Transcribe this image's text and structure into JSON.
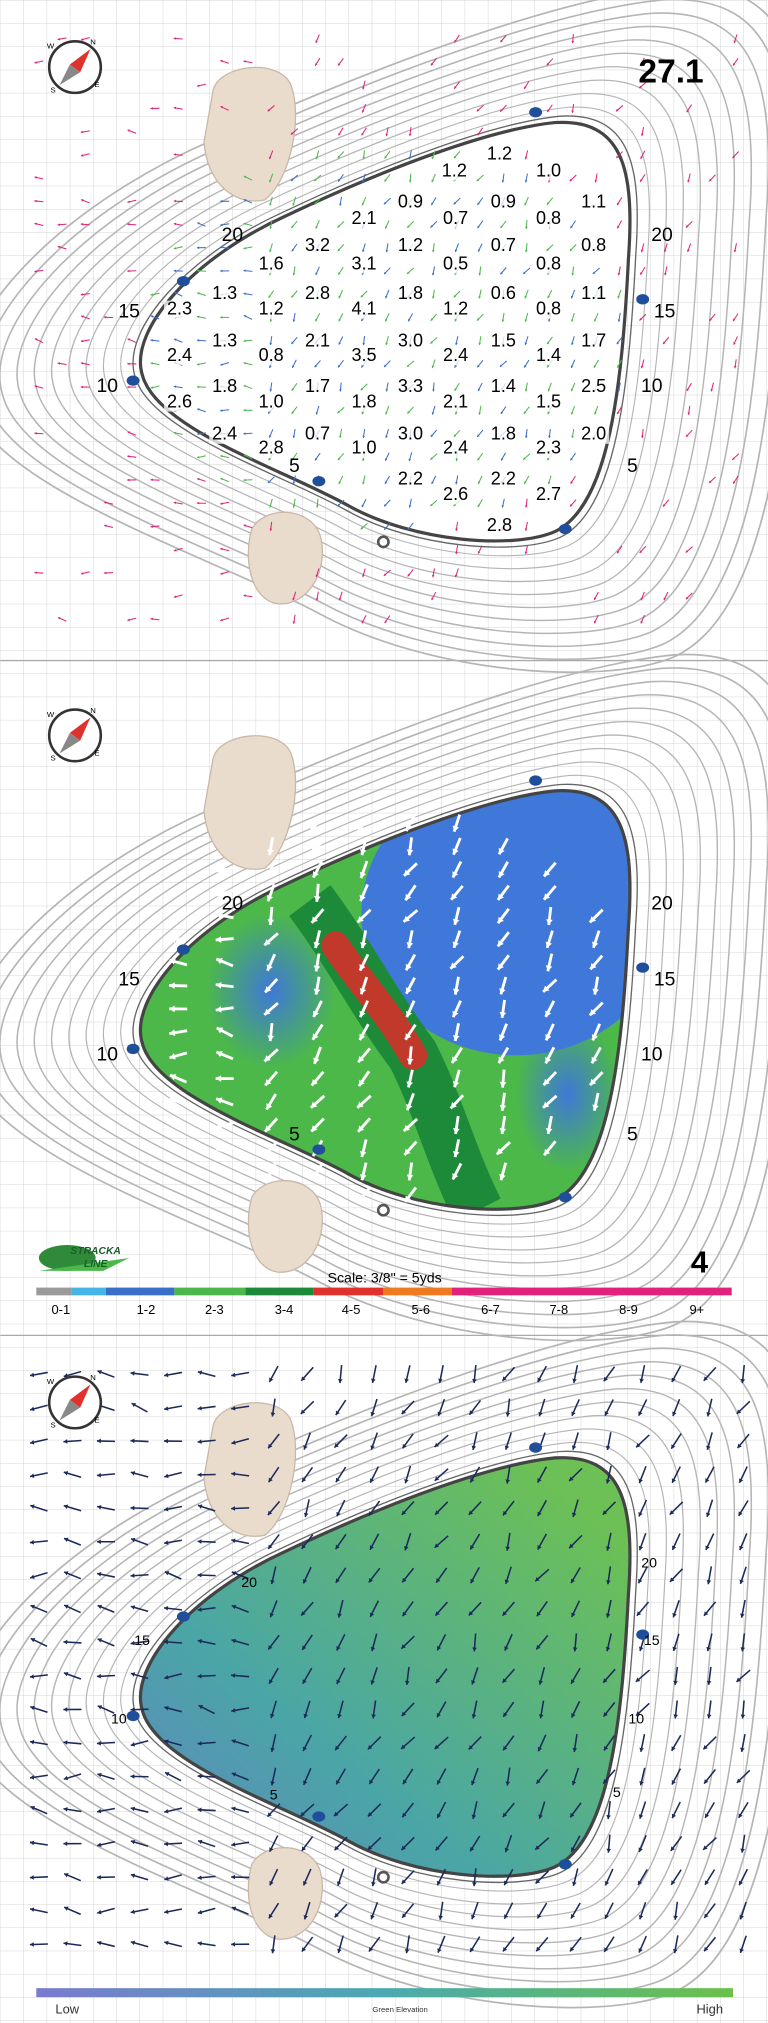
{
  "slope_panel": {
    "title": "27.1",
    "rows": [
      [
        "1.2"
      ],
      [
        "1.2",
        "1.0"
      ],
      [
        "0.9",
        "0.9",
        "1.1"
      ],
      [
        "2.1",
        "0.7",
        "0.8"
      ],
      [
        "3.2",
        "1.2",
        "0.7",
        "0.8"
      ],
      [
        "1.6",
        "3.1",
        "0.5",
        "0.8"
      ],
      [
        "1.3",
        "2.8",
        "1.8",
        "0.6",
        "1.1"
      ],
      [
        "2.3",
        "1.2",
        "4.1",
        "1.2",
        "0.8"
      ],
      [
        "1.3",
        "2.1",
        "3.0",
        "1.5",
        "1.7"
      ],
      [
        "2.4",
        "0.8",
        "3.5",
        "2.4",
        "1.4"
      ],
      [
        "1.8",
        "1.7",
        "3.3",
        "1.4",
        "2.5"
      ],
      [
        "2.6",
        "1.0",
        "1.8",
        "2.1",
        "1.5"
      ],
      [
        "2.4",
        "0.7",
        "3.0",
        "1.8",
        "2.0"
      ],
      [
        "2.8",
        "1.0",
        "2.4",
        "2.3"
      ],
      [
        "2.2",
        "2.2"
      ],
      [
        "2.6",
        "2.7"
      ],
      [
        "2.8"
      ]
    ]
  },
  "panels": [
    {
      "contour_labels": [
        "20",
        "15",
        "10",
        "5",
        "20",
        "15",
        "10",
        "5"
      ]
    },
    {
      "contour_labels": [
        "20",
        "15",
        "10",
        "5",
        "20",
        "15",
        "10",
        "5"
      ]
    },
    {
      "contour_labels": [
        "20",
        "15",
        "10",
        "5",
        "20",
        "15",
        "10",
        "5"
      ]
    }
  ],
  "compass": [
    "N",
    "E",
    "S",
    "W"
  ],
  "logo": [
    "STRACKA",
    "LINE"
  ],
  "legend": {
    "scale": "Scale: 3/8\" = 5yds",
    "page": "4",
    "ranges": [
      "0-1",
      "1-2",
      "2-3",
      "3-4",
      "4-5",
      "5-6",
      "6-7",
      "7-8",
      "8-9",
      "9+"
    ]
  },
  "elevation": {
    "low": "Low",
    "label": "Green Elevation",
    "high": "High"
  }
}
